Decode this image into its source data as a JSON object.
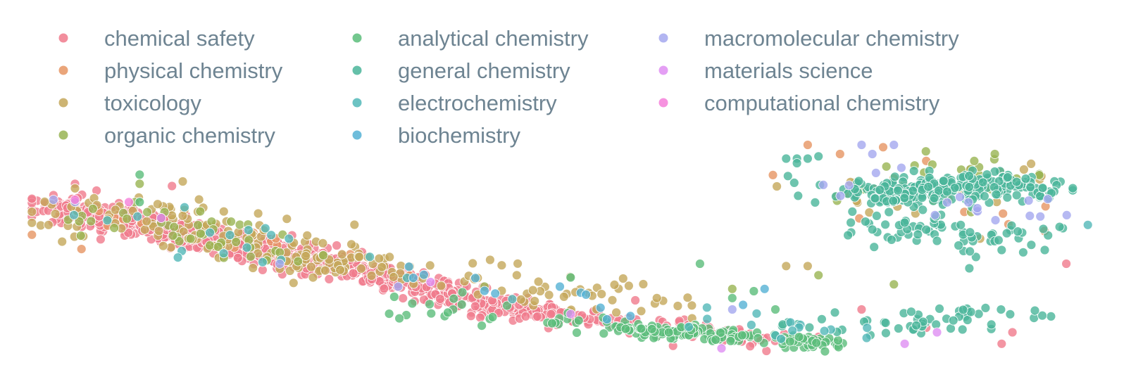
{
  "chart_data": {
    "type": "scatter",
    "title": "",
    "xlabel": "",
    "ylabel": "",
    "grid": false,
    "axes_visible": false,
    "legend_placement": "top-left",
    "xlim": [
      0,
      100
    ],
    "ylim": [
      0,
      100
    ],
    "series": [
      {
        "name": "chemical safety",
        "color": "#f07a8c",
        "clusters": [
          {
            "from": [
              3,
              66
            ],
            "to": [
              30,
              38
            ],
            "count": 520,
            "spread": 2.2
          },
          {
            "from": [
              30,
              38
            ],
            "to": [
              48,
              18
            ],
            "count": 240,
            "spread": 2.0
          },
          {
            "from": [
              48,
              18
            ],
            "to": [
              70,
              6
            ],
            "count": 90,
            "spread": 2.0
          }
        ],
        "points": [
          [
            3,
            70
          ],
          [
            5,
            75
          ],
          [
            7,
            72
          ],
          [
            14,
            74
          ],
          [
            78,
            20
          ],
          [
            84,
            12
          ],
          [
            91,
            5
          ],
          [
            92,
            10
          ],
          [
            97,
            40
          ],
          [
            74,
            8
          ],
          [
            57,
            24
          ],
          [
            40,
            27
          ]
        ]
      },
      {
        "name": "physical chemistry",
        "color": "#e69563",
        "clusters": [
          {
            "from": [
              8,
              60
            ],
            "to": [
              40,
              32
            ],
            "count": 18,
            "spread": 3.5
          },
          {
            "from": [
              74,
              72
            ],
            "to": [
              92,
              60
            ],
            "count": 10,
            "spread": 4.0
          }
        ],
        "points": [
          [
            73,
            92
          ],
          [
            80,
            91
          ],
          [
            84,
            85
          ],
          [
            76,
            88
          ],
          [
            88,
            81
          ],
          [
            91,
            72
          ]
        ]
      },
      {
        "name": "toxicology",
        "color": "#c4a75a",
        "clusters": [
          {
            "from": [
              5,
              66
            ],
            "to": [
              30,
              40
            ],
            "count": 130,
            "spread": 4.0
          },
          {
            "from": [
              30,
              40
            ],
            "to": [
              60,
              20
            ],
            "count": 70,
            "spread": 4.0
          },
          {
            "from": [
              76,
              62
            ],
            "to": [
              93,
              80
            ],
            "count": 25,
            "spread": 4.0
          }
        ],
        "points": [
          [
            5,
            73
          ],
          [
            15,
            76
          ],
          [
            22,
            62
          ],
          [
            15,
            61
          ],
          [
            28,
            49
          ],
          [
            46,
            35
          ],
          [
            53,
            26
          ],
          [
            59,
            25
          ],
          [
            71,
            39
          ],
          [
            73,
            39
          ],
          [
            83,
            62
          ],
          [
            89,
            51
          ]
        ]
      },
      {
        "name": "organic chemistry",
        "color": "#98b453",
        "clusters": [
          {
            "from": [
              8,
              62
            ],
            "to": [
              30,
              40
            ],
            "count": 40,
            "spread": 3.5
          },
          {
            "from": [
              78,
              65
            ],
            "to": [
              92,
              85
            ],
            "count": 30,
            "spread": 4.5
          }
        ],
        "points": [
          [
            11,
            75
          ],
          [
            13,
            58
          ],
          [
            24,
            45
          ],
          [
            43,
            30
          ],
          [
            66,
            29
          ],
          [
            74,
            35
          ],
          [
            81,
            31
          ]
        ]
      },
      {
        "name": "analytical chemistry",
        "color": "#5bbd7a",
        "clusters": [
          {
            "from": [
              55,
              12
            ],
            "to": [
              75,
              5
            ],
            "count": 160,
            "spread": 1.4
          },
          {
            "from": [
              35,
              25
            ],
            "to": [
              55,
              12
            ],
            "count": 30,
            "spread": 3.0
          }
        ],
        "points": [
          [
            11,
            79
          ],
          [
            11,
            67
          ],
          [
            51,
            34
          ],
          [
            63,
            40
          ],
          [
            66,
            25
          ],
          [
            68,
            28
          ],
          [
            70,
            20
          ]
        ]
      },
      {
        "name": "general chemistry",
        "color": "#4ab59a",
        "clusters": [
          {
            "from": [
              79,
              70
            ],
            "to": [
              93,
              76
            ],
            "count": 260,
            "spread": 3.3
          },
          {
            "from": [
              80,
              58
            ],
            "to": [
              93,
              48
            ],
            "count": 60,
            "spread": 3.5
          },
          {
            "from": [
              76,
              10
            ],
            "to": [
              91,
              20
            ],
            "count": 55,
            "spread": 3.0
          }
        ],
        "points": [
          [
            72,
            86
          ],
          [
            71,
            86
          ],
          [
            73,
            86
          ],
          [
            74,
            87
          ],
          [
            72,
            84
          ],
          [
            77,
            58
          ],
          [
            79,
            55
          ],
          [
            82,
            58
          ],
          [
            87,
            48
          ],
          [
            91,
            46
          ],
          [
            93,
            45
          ],
          [
            95,
            46
          ],
          [
            85,
            50
          ],
          [
            88,
            38
          ]
        ]
      },
      {
        "name": "electrochemistry",
        "color": "#52b8b8",
        "clusters": [
          {
            "from": [
              8,
              62
            ],
            "to": [
              40,
              30
            ],
            "count": 18,
            "spread": 3.5
          },
          {
            "from": [
              63,
              15
            ],
            "to": [
              76,
              10
            ],
            "count": 15,
            "spread": 3.0
          }
        ],
        "points": [
          [
            99,
            57
          ],
          [
            8,
            59
          ],
          [
            13,
            60
          ]
        ]
      },
      {
        "name": "biochemistry",
        "color": "#55b2d5",
        "clusters": [
          {
            "from": [
              30,
              40
            ],
            "to": [
              56,
              20
            ],
            "count": 10,
            "spread": 3.0
          }
        ],
        "points": [
          [
            50,
            30
          ],
          [
            69,
            29
          ],
          [
            67,
            22
          ],
          [
            44,
            27
          ]
        ]
      },
      {
        "name": "macromolecular chemistry",
        "color": "#a4a8ef",
        "clusters": [
          {
            "from": [
              78,
              78
            ],
            "to": [
              92,
              62
            ],
            "count": 18,
            "spread": 4.0
          }
        ],
        "points": [
          [
            3,
            68
          ],
          [
            5,
            67
          ],
          [
            24,
            40
          ],
          [
            35,
            30
          ],
          [
            66,
            20
          ],
          [
            78,
            92
          ],
          [
            79,
            88
          ],
          [
            81,
            92
          ]
        ]
      },
      {
        "name": "materials science",
        "color": "#df8ef2",
        "clusters": [],
        "points": [
          [
            85,
            10
          ],
          [
            65,
            3
          ],
          [
            51,
            18
          ],
          [
            38,
            32
          ],
          [
            82,
            5
          ]
        ]
      },
      {
        "name": "computational chemistry",
        "color": "#f57fd9",
        "clusters": [],
        "points": [
          [
            10,
            67
          ],
          [
            5,
            68
          ],
          [
            13,
            60
          ]
        ]
      }
    ]
  }
}
